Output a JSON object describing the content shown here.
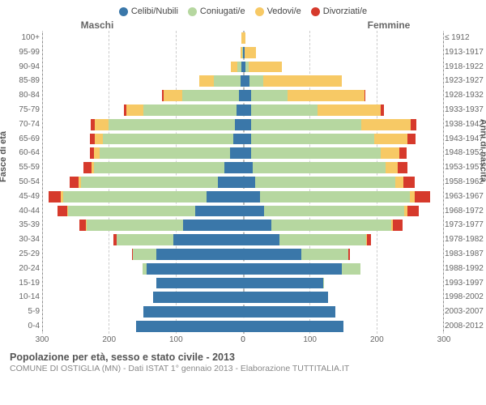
{
  "legend": [
    {
      "key": "celibi",
      "label": "Celibi/Nubili",
      "color": "#3a77a9"
    },
    {
      "key": "coniugati",
      "label": "Coniugati/e",
      "color": "#b6d7a0"
    },
    {
      "key": "vedovi",
      "label": "Vedovi/e",
      "color": "#f7c965"
    },
    {
      "key": "divorziati",
      "label": "Divorziati/e",
      "color": "#d63a2c"
    }
  ],
  "headers": {
    "male": "Maschi",
    "female": "Femmine"
  },
  "ylabel_left": "Fasce di età",
  "ylabel_right": "Anni di nascita",
  "xmax": 300,
  "xticks": [
    0,
    100,
    200,
    300
  ],
  "title": "Popolazione per età, sesso e stato civile - 2013",
  "subtitle": "COMUNE DI OSTIGLIA (MN) - Dati ISTAT 1° gennaio 2013 - Elaborazione TUTTITALIA.IT",
  "colors": {
    "celibi": "#3a77a9",
    "coniugati": "#b6d7a0",
    "vedovi": "#f7c965",
    "divorziati": "#d63a2c",
    "grid": "#cccccc",
    "background": "#ffffff"
  },
  "rows": [
    {
      "age": "100+",
      "year": "≤ 1912",
      "m": {
        "c": 0,
        "co": 0,
        "v": 2,
        "d": 0
      },
      "f": {
        "c": 0,
        "co": 0,
        "v": 4,
        "d": 0
      }
    },
    {
      "age": "95-99",
      "year": "1913-1917",
      "m": {
        "c": 0,
        "co": 1,
        "v": 3,
        "d": 0
      },
      "f": {
        "c": 2,
        "co": 0,
        "v": 18,
        "d": 0
      }
    },
    {
      "age": "90-94",
      "year": "1918-1922",
      "m": {
        "c": 2,
        "co": 6,
        "v": 10,
        "d": 0
      },
      "f": {
        "c": 4,
        "co": 4,
        "v": 50,
        "d": 0
      }
    },
    {
      "age": "85-89",
      "year": "1923-1927",
      "m": {
        "c": 4,
        "co": 40,
        "v": 22,
        "d": 0
      },
      "f": {
        "c": 10,
        "co": 20,
        "v": 118,
        "d": 0
      }
    },
    {
      "age": "80-84",
      "year": "1928-1932",
      "m": {
        "c": 6,
        "co": 85,
        "v": 28,
        "d": 2
      },
      "f": {
        "c": 12,
        "co": 55,
        "v": 115,
        "d": 2
      }
    },
    {
      "age": "75-79",
      "year": "1933-1937",
      "m": {
        "c": 10,
        "co": 140,
        "v": 25,
        "d": 3
      },
      "f": {
        "c": 12,
        "co": 100,
        "v": 95,
        "d": 4
      }
    },
    {
      "age": "70-74",
      "year": "1938-1942",
      "m": {
        "c": 12,
        "co": 190,
        "v": 20,
        "d": 6
      },
      "f": {
        "c": 12,
        "co": 165,
        "v": 75,
        "d": 8
      }
    },
    {
      "age": "65-69",
      "year": "1943-1947",
      "m": {
        "c": 15,
        "co": 195,
        "v": 12,
        "d": 8
      },
      "f": {
        "c": 12,
        "co": 185,
        "v": 50,
        "d": 12
      }
    },
    {
      "age": "60-64",
      "year": "1948-1952",
      "m": {
        "c": 20,
        "co": 195,
        "v": 8,
        "d": 6
      },
      "f": {
        "c": 12,
        "co": 195,
        "v": 28,
        "d": 10
      }
    },
    {
      "age": "55-59",
      "year": "1953-1957",
      "m": {
        "c": 28,
        "co": 195,
        "v": 4,
        "d": 12
      },
      "f": {
        "c": 14,
        "co": 200,
        "v": 18,
        "d": 14
      }
    },
    {
      "age": "50-54",
      "year": "1958-1962",
      "m": {
        "c": 38,
        "co": 205,
        "v": 3,
        "d": 14
      },
      "f": {
        "c": 18,
        "co": 210,
        "v": 12,
        "d": 18
      }
    },
    {
      "age": "45-49",
      "year": "1963-1967",
      "m": {
        "c": 55,
        "co": 215,
        "v": 3,
        "d": 18
      },
      "f": {
        "c": 25,
        "co": 225,
        "v": 8,
        "d": 22
      }
    },
    {
      "age": "40-44",
      "year": "1968-1972",
      "m": {
        "c": 72,
        "co": 190,
        "v": 2,
        "d": 14
      },
      "f": {
        "c": 32,
        "co": 210,
        "v": 5,
        "d": 16
      }
    },
    {
      "age": "35-39",
      "year": "1973-1977",
      "m": {
        "c": 90,
        "co": 145,
        "v": 1,
        "d": 10
      },
      "f": {
        "c": 42,
        "co": 180,
        "v": 3,
        "d": 14
      }
    },
    {
      "age": "30-34",
      "year": "1978-1982",
      "m": {
        "c": 105,
        "co": 85,
        "v": 0,
        "d": 4
      },
      "f": {
        "c": 55,
        "co": 130,
        "v": 1,
        "d": 6
      }
    },
    {
      "age": "25-29",
      "year": "1983-1987",
      "m": {
        "c": 130,
        "co": 35,
        "v": 0,
        "d": 1
      },
      "f": {
        "c": 88,
        "co": 70,
        "v": 0,
        "d": 2
      }
    },
    {
      "age": "20-24",
      "year": "1988-1992",
      "m": {
        "c": 145,
        "co": 6,
        "v": 0,
        "d": 0
      },
      "f": {
        "c": 148,
        "co": 28,
        "v": 0,
        "d": 0
      }
    },
    {
      "age": "15-19",
      "year": "1993-1997",
      "m": {
        "c": 130,
        "co": 0,
        "v": 0,
        "d": 0
      },
      "f": {
        "c": 120,
        "co": 2,
        "v": 0,
        "d": 0
      }
    },
    {
      "age": "10-14",
      "year": "1998-2002",
      "m": {
        "c": 135,
        "co": 0,
        "v": 0,
        "d": 0
      },
      "f": {
        "c": 128,
        "co": 0,
        "v": 0,
        "d": 0
      }
    },
    {
      "age": "5-9",
      "year": "2003-2007",
      "m": {
        "c": 150,
        "co": 0,
        "v": 0,
        "d": 0
      },
      "f": {
        "c": 138,
        "co": 0,
        "v": 0,
        "d": 0
      }
    },
    {
      "age": "0-4",
      "year": "2008-2012",
      "m": {
        "c": 160,
        "co": 0,
        "v": 0,
        "d": 0
      },
      "f": {
        "c": 150,
        "co": 0,
        "v": 0,
        "d": 0
      }
    }
  ]
}
